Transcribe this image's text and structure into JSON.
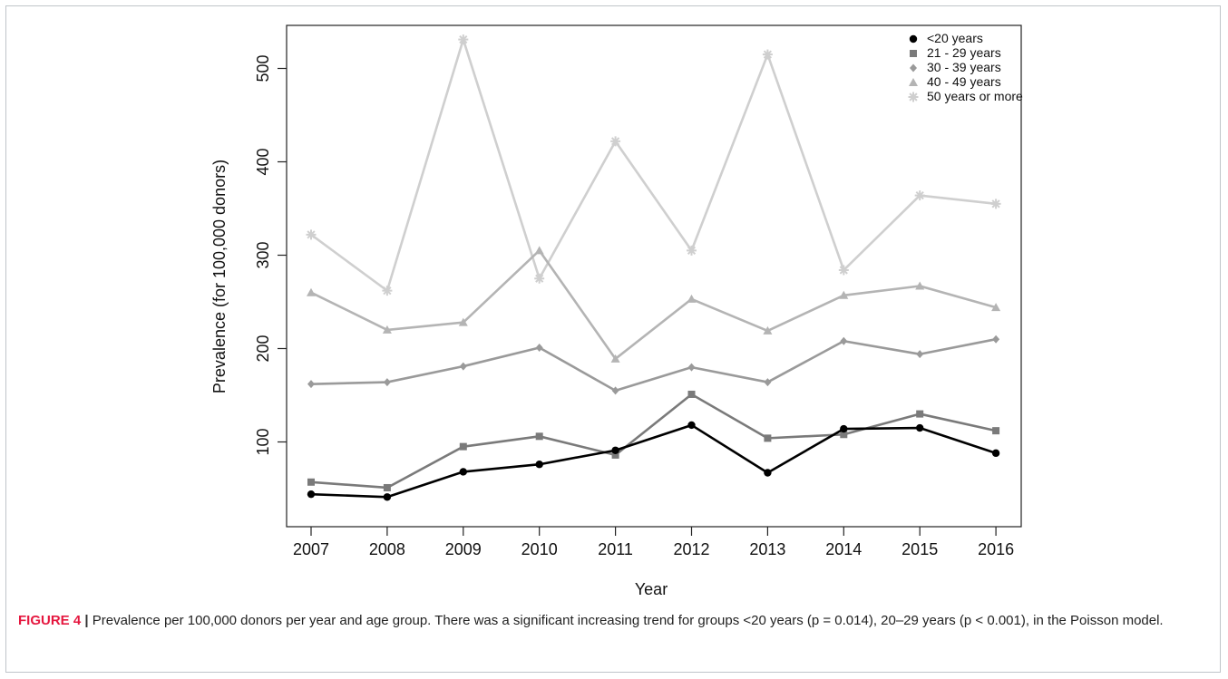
{
  "chart_data": {
    "type": "line",
    "xlabel": "Year",
    "ylabel": "Prevalence (for 100,000 donors)",
    "x": [
      "2007",
      "2008",
      "2009",
      "2010",
      "2011",
      "2012",
      "2013",
      "2014",
      "2015",
      "2016"
    ],
    "ylim": [
      0,
      550
    ],
    "yticks": [
      "100",
      "200",
      "300",
      "400",
      "500"
    ],
    "grid": false,
    "legend_position": "top-right",
    "series": [
      {
        "name": "<20 years",
        "marker": "circle",
        "color": "#000000",
        "values": [
          44,
          41,
          68,
          76,
          91,
          118,
          67,
          114,
          115,
          88
        ]
      },
      {
        "name": "21 - 29 years",
        "marker": "square",
        "color": "#7a7a7a",
        "values": [
          57,
          51,
          95,
          106,
          86,
          151,
          104,
          108,
          130,
          112
        ]
      },
      {
        "name": "30 - 39 years",
        "marker": "diamond",
        "color": "#9a9a9a",
        "values": [
          162,
          164,
          181,
          201,
          155,
          180,
          164,
          208,
          194,
          210
        ]
      },
      {
        "name": "40 - 49 years",
        "marker": "triangle",
        "color": "#b4b4b4",
        "values": [
          260,
          220,
          228,
          305,
          189,
          253,
          219,
          257,
          267,
          244
        ]
      },
      {
        "name": "50 years or more",
        "marker": "asterisk",
        "color": "#cfcfcf",
        "values": [
          322,
          262,
          531,
          275,
          422,
          305,
          515,
          284,
          364,
          355
        ]
      }
    ]
  },
  "caption": {
    "label": "FIGURE 4",
    "separator": " | ",
    "text": "Prevalence per 100,000 donors per year and age group. There was a significant increasing trend for groups <20 years (p = 0.014), 20–29 years (p < 0.001), in the Poisson model."
  }
}
